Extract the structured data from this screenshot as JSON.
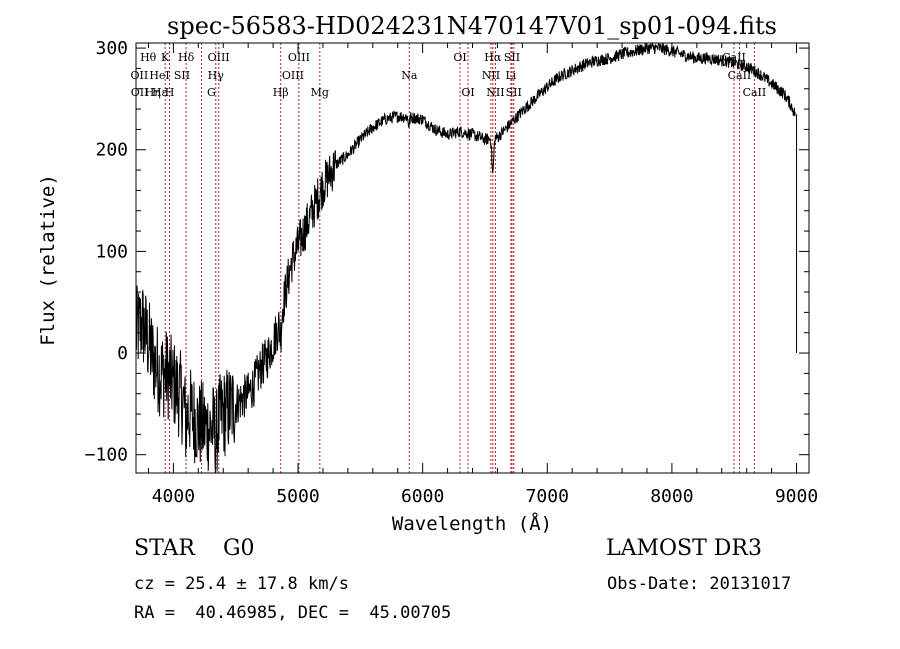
{
  "chart_data": {
    "type": "line",
    "title": "spec-56583-HD024231N470147V01_sp01-094.fits",
    "xlabel": "Wavelength (Å)",
    "ylabel": "Flux (relative)",
    "xlim": [
      3700,
      9100
    ],
    "ylim": [
      -118,
      305
    ],
    "xticks": [
      4000,
      5000,
      6000,
      7000,
      8000,
      9000
    ],
    "xtick_labels": [
      "4000",
      "5000",
      "6000",
      "7000",
      "8000",
      "9000"
    ],
    "yticks": [
      -100,
      0,
      100,
      200,
      300
    ],
    "ytick_labels": [
      "−100",
      "0",
      "100",
      "200",
      "300"
    ],
    "grid": false,
    "legend": "none",
    "series_color": "#000000",
    "line_marker_color": "#b22222",
    "spectrum_anchors": [
      [
        3700,
        20
      ],
      [
        3750,
        30
      ],
      [
        3800,
        10
      ],
      [
        3850,
        -10
      ],
      [
        3900,
        -20
      ],
      [
        3950,
        -20
      ],
      [
        4000,
        -30
      ],
      [
        4050,
        -40
      ],
      [
        4100,
        -55
      ],
      [
        4150,
        -60
      ],
      [
        4200,
        -70
      ],
      [
        4250,
        -72
      ],
      [
        4300,
        -75
      ],
      [
        4350,
        -70
      ],
      [
        4400,
        -60
      ],
      [
        4450,
        -55
      ],
      [
        4500,
        -50
      ],
      [
        4550,
        -45
      ],
      [
        4600,
        -40
      ],
      [
        4650,
        -30
      ],
      [
        4700,
        -15
      ],
      [
        4750,
        -5
      ],
      [
        4800,
        10
      ],
      [
        4850,
        30
      ],
      [
        4900,
        60
      ],
      [
        4950,
        90
      ],
      [
        5000,
        105
      ],
      [
        5050,
        120
      ],
      [
        5100,
        135
      ],
      [
        5150,
        150
      ],
      [
        5200,
        165
      ],
      [
        5300,
        185
      ],
      [
        5400,
        195
      ],
      [
        5500,
        210
      ],
      [
        5600,
        222
      ],
      [
        5700,
        230
      ],
      [
        5800,
        233
      ],
      [
        5900,
        232
      ],
      [
        6000,
        230
      ],
      [
        6100,
        220
      ],
      [
        6200,
        215
      ],
      [
        6300,
        218
      ],
      [
        6400,
        215
      ],
      [
        6500,
        210
      ],
      [
        6600,
        212
      ],
      [
        6700,
        225
      ],
      [
        6800,
        238
      ],
      [
        6900,
        250
      ],
      [
        7000,
        262
      ],
      [
        7100,
        272
      ],
      [
        7200,
        278
      ],
      [
        7300,
        284
      ],
      [
        7400,
        288
      ],
      [
        7500,
        290
      ],
      [
        7600,
        294
      ],
      [
        7700,
        297
      ],
      [
        7800,
        300
      ],
      [
        7900,
        300
      ],
      [
        8000,
        297
      ],
      [
        8100,
        293
      ],
      [
        8200,
        290
      ],
      [
        8300,
        290
      ],
      [
        8400,
        288
      ],
      [
        8500,
        285
      ],
      [
        8600,
        282
      ],
      [
        8700,
        275
      ],
      [
        8800,
        265
      ],
      [
        8900,
        255
      ],
      [
        8950,
        245
      ],
      [
        8990,
        235
      ]
    ],
    "absorption_dips": [
      {
        "center": 6563,
        "depth": 35,
        "width": 10
      },
      {
        "center": 4861,
        "depth": 18,
        "width": 10
      },
      {
        "center": 5890,
        "depth": 8,
        "width": 8
      },
      {
        "center": 4340,
        "depth": 15,
        "width": 10
      },
      {
        "center": 4101,
        "depth": 15,
        "width": 10
      }
    ],
    "noise": [
      {
        "range": [
          3700,
          4500
        ],
        "amplitude": 45
      },
      {
        "range": [
          4500,
          5300
        ],
        "amplitude": 22
      },
      {
        "range": [
          5300,
          9000
        ],
        "amplitude": 6
      }
    ],
    "end_drop": {
      "x": 9000,
      "ymin": 0,
      "ymax": 235
    },
    "line_markers": [
      3934,
      3969,
      4102,
      4226,
      4340,
      4364,
      4861,
      5007,
      5175,
      5893,
      6300,
      6364,
      6548,
      6563,
      6584,
      6708,
      6717,
      6731,
      8498,
      8542,
      8662
    ],
    "line_labels": [
      {
        "text": "Hθ",
        "x": 3798,
        "row": 0
      },
      {
        "text": "K",
        "x": 3934,
        "row": 0
      },
      {
        "text": "Hδ",
        "x": 4102,
        "row": 0
      },
      {
        "text": "OIII",
        "x": 4363,
        "row": 0
      },
      {
        "text": "OIII",
        "x": 5007,
        "row": 0
      },
      {
        "text": "OI",
        "x": 6300,
        "row": 0
      },
      {
        "text": "Hα",
        "x": 6563,
        "row": 0
      },
      {
        "text": "SII",
        "x": 6717,
        "row": 0
      },
      {
        "text": "CaII",
        "x": 8498,
        "row": 0
      },
      {
        "text": "OII",
        "x": 3727,
        "row": 1
      },
      {
        "text": "HeI",
        "x": 3889,
        "row": 1
      },
      {
        "text": "SII",
        "x": 4069,
        "row": 1
      },
      {
        "text": "Hγ",
        "x": 4340,
        "row": 1
      },
      {
        "text": "OIII",
        "x": 4959,
        "row": 1
      },
      {
        "text": "Na",
        "x": 5893,
        "row": 1
      },
      {
        "text": "NII",
        "x": 6548,
        "row": 1
      },
      {
        "text": "Li",
        "x": 6708,
        "row": 1
      },
      {
        "text": "CaII",
        "x": 8542,
        "row": 1
      },
      {
        "text": "OII",
        "x": 3729,
        "row": 2
      },
      {
        "text": "Hε",
        "x": 3889,
        "row": 2
      },
      {
        "text": "Hη",
        "x": 3835,
        "row": 2
      },
      {
        "text": "H",
        "x": 3969,
        "row": 2
      },
      {
        "text": "G",
        "x": 4305,
        "row": 2
      },
      {
        "text": "Hβ",
        "x": 4861,
        "row": 2
      },
      {
        "text": "Mg",
        "x": 5175,
        "row": 2
      },
      {
        "text": "OI",
        "x": 6364,
        "row": 2
      },
      {
        "text": "NII",
        "x": 6584,
        "row": 2
      },
      {
        "text": "SII",
        "x": 6731,
        "row": 2
      },
      {
        "text": "CaII",
        "x": 8662,
        "row": 2
      }
    ]
  },
  "info": {
    "star_class": "STAR    G0",
    "survey": "LAMOST DR3",
    "cz": "cz = 25.4 ± 17.8 km/s",
    "obs_date": "Obs-Date: 20131017",
    "radec": "RA =  40.46985, DEC =  45.00705"
  }
}
